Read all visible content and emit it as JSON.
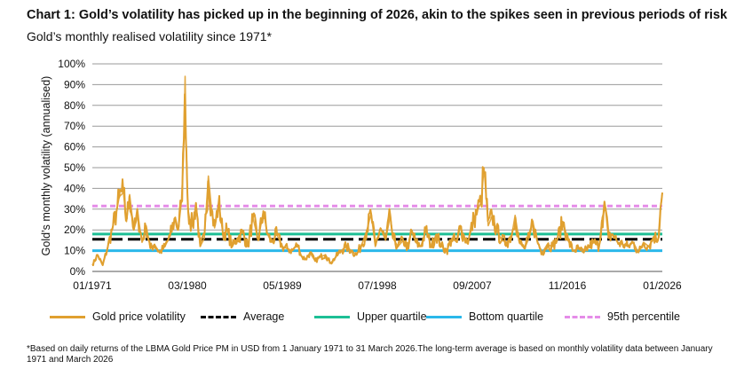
{
  "title": "Chart 1: Gold’s volatility has picked up in the beginning of 2026, akin to the spikes seen in previous periods of risk",
  "subtitle": "Gold’s monthly realised volatility since 1971*",
  "footnote": "*Based on daily returns of the LBMA Gold Price PM in USD from 1 January 1971 to 31 March 2026.The long-term average is based on monthly volatility data between January 1971 and March 2026",
  "chart_data": {
    "type": "line",
    "ylabel": "Gold’s monthly volatility (annualised)",
    "xlabel": "",
    "ylim": [
      0,
      100
    ],
    "yticks": [
      "0%",
      "10%",
      "20%",
      "30%",
      "40%",
      "50%",
      "60%",
      "70%",
      "80%",
      "90%",
      "100%"
    ],
    "xticks": [
      "01/1971",
      "03/1980",
      "05/1989",
      "07/1998",
      "09/2007",
      "11/2016",
      "01/2026"
    ],
    "xlim": [
      1971.0,
      2026.0
    ],
    "grid": true,
    "legend_position": "bottom",
    "series": [
      {
        "name": "Gold price volatility",
        "color": "#E0A030",
        "style": "solid",
        "x": [
          1971.0,
          1971.5,
          1972.0,
          1972.5,
          1973.0,
          1973.3,
          1973.6,
          1974.0,
          1974.3,
          1974.6,
          1975.0,
          1975.4,
          1975.8,
          1976.2,
          1976.6,
          1977.0,
          1977.5,
          1978.0,
          1978.5,
          1979.0,
          1979.3,
          1979.6,
          1979.8,
          1979.95,
          1980.05,
          1980.2,
          1980.4,
          1980.7,
          1981.0,
          1981.4,
          1981.8,
          1982.2,
          1982.5,
          1982.8,
          1983.2,
          1983.6,
          1984.0,
          1984.5,
          1985.0,
          1985.5,
          1986.0,
          1986.5,
          1987.0,
          1987.5,
          1987.9,
          1988.3,
          1988.8,
          1989.3,
          1989.8,
          1990.3,
          1990.8,
          1991.2,
          1991.6,
          1992.0,
          1992.5,
          1993.0,
          1993.5,
          1994.0,
          1994.5,
          1995.0,
          1995.5,
          1996.0,
          1996.5,
          1997.0,
          1997.5,
          1997.9,
          1998.3,
          1998.8,
          1999.3,
          1999.75,
          2000.0,
          2000.5,
          2001.0,
          2001.5,
          2001.8,
          2002.2,
          2002.7,
          2003.2,
          2003.7,
          2004.2,
          2004.7,
          2005.2,
          2005.7,
          2006.2,
          2006.5,
          2006.9,
          2007.3,
          2007.8,
          2008.2,
          2008.5,
          2008.8,
          2009.2,
          2009.6,
          2010.0,
          2010.5,
          2011.0,
          2011.5,
          2011.8,
          2012.2,
          2012.7,
          2013.2,
          2013.5,
          2013.9,
          2014.4,
          2014.9,
          2015.4,
          2015.9,
          2016.4,
          2016.9,
          2017.4,
          2017.9,
          2018.4,
          2018.9,
          2019.4,
          2019.9,
          2020.2,
          2020.5,
          2020.8,
          2021.2,
          2021.7,
          2022.2,
          2022.7,
          2023.2,
          2023.7,
          2024.2,
          2024.7,
          2025.2,
          2025.6,
          2025.8,
          2026.0
        ],
        "values": [
          3,
          8,
          3,
          12,
          22,
          28,
          36,
          38,
          24,
          37,
          20,
          27,
          14,
          22,
          11,
          13,
          9,
          12,
          17,
          26,
          20,
          34,
          55,
          94,
          65,
          31,
          25,
          22,
          33,
          12,
          16,
          46,
          30,
          21,
          33,
          18,
          20,
          12,
          16,
          19,
          12,
          26,
          15,
          29,
          18,
          14,
          18,
          12,
          11,
          10,
          13,
          7,
          6,
          9,
          5,
          7,
          8,
          4,
          7,
          10,
          12,
          10,
          8,
          13,
          20,
          28,
          12,
          21,
          15,
          27,
          16,
          12,
          15,
          11,
          20,
          14,
          12,
          20,
          12,
          18,
          12,
          10,
          16,
          14,
          22,
          16,
          15,
          25,
          30,
          33,
          50,
          22,
          27,
          20,
          15,
          14,
          18,
          27,
          14,
          11,
          17,
          24,
          15,
          9,
          13,
          12,
          16,
          24,
          15,
          10,
          11,
          9,
          12,
          14,
          12,
          26,
          31,
          16,
          18,
          14,
          13,
          12,
          14,
          9,
          14,
          12,
          17,
          15,
          30,
          38
        ]
      },
      {
        "name": "Average",
        "color": "#000000",
        "style": "dashed",
        "value": 15.5
      },
      {
        "name": "Upper quartile",
        "color": "#1DBF95",
        "style": "solid",
        "value": 18
      },
      {
        "name": "Bottom quartile",
        "color": "#2BB8EA",
        "style": "solid",
        "value": 10
      },
      {
        "name": "95th percentile",
        "color": "#E58CE8",
        "style": "dashed",
        "value": 31.5
      }
    ]
  }
}
